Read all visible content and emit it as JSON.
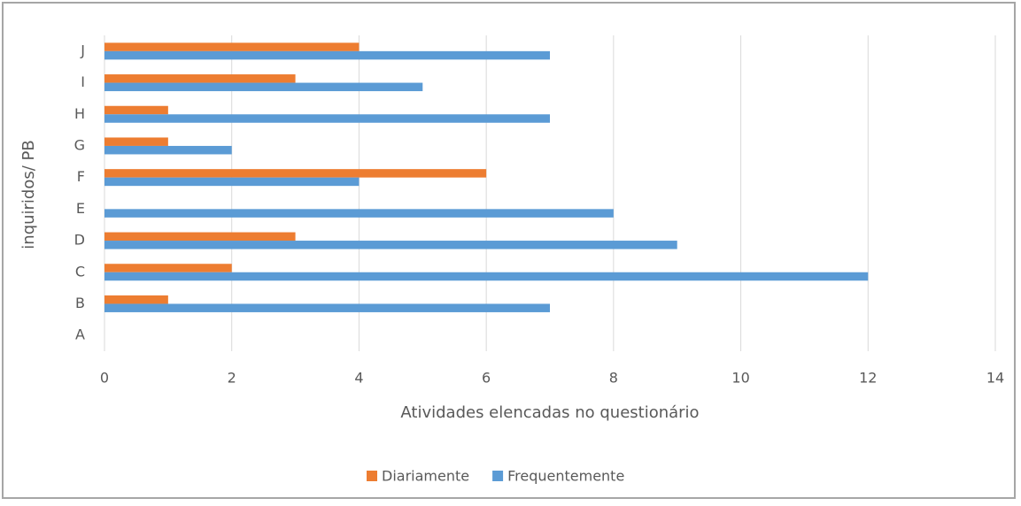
{
  "chart_data": {
    "type": "hbar",
    "x_label": "Atividades elencadas no questionário",
    "y_label": "inquiridos/ PB",
    "categories": [
      "A",
      "B",
      "C",
      "D",
      "E",
      "F",
      "G",
      "H",
      "I",
      "J"
    ],
    "series": [
      {
        "name": "Diariamente",
        "color": "#ed7d31",
        "values": [
          0,
          1,
          2,
          3,
          0,
          6,
          1,
          1,
          3,
          4
        ]
      },
      {
        "name": "Frequentemente",
        "color": "#5b9bd5",
        "values": [
          0,
          7,
          12,
          9,
          8,
          4,
          2,
          7,
          5,
          7
        ]
      }
    ],
    "xlim": [
      0,
      14
    ],
    "xticks": [
      0,
      2,
      4,
      6,
      8,
      10,
      12,
      14
    ],
    "grid": true,
    "legend": "bottom"
  }
}
